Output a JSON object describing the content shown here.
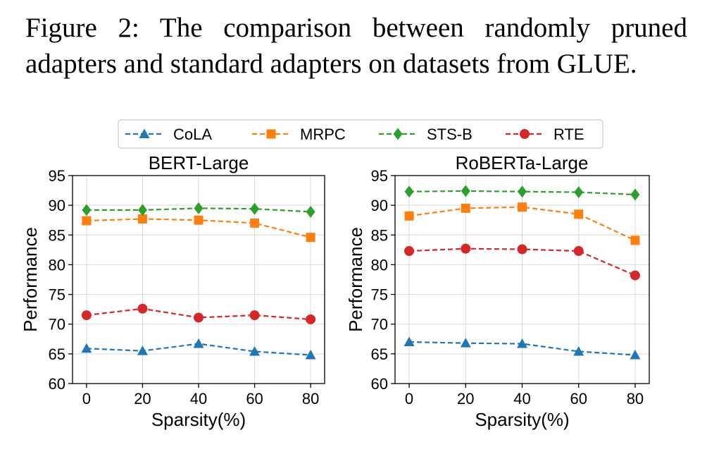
{
  "caption": "Figure 2: The comparison between randomly pruned adapters and standard adapters on datasets from GLUE.",
  "chart_data": [
    {
      "type": "line",
      "title": "BERT-Large",
      "xlabel": "Sparsity(%)",
      "ylabel": "Performance",
      "x": [
        0,
        20,
        40,
        60,
        80
      ],
      "xlim": [
        -5,
        85
      ],
      "ylim": [
        60,
        95
      ],
      "xticks": [
        "0",
        "20",
        "40",
        "60",
        "80"
      ],
      "yticks": [
        "60",
        "65",
        "70",
        "75",
        "80",
        "85",
        "90",
        "95"
      ],
      "grid": true,
      "series": [
        {
          "name": "CoLA",
          "values": [
            65.9,
            65.5,
            66.7,
            65.4,
            64.8
          ]
        },
        {
          "name": "MRPC",
          "values": [
            87.4,
            87.7,
            87.5,
            87.0,
            84.6
          ]
        },
        {
          "name": "STS-B",
          "values": [
            89.2,
            89.2,
            89.5,
            89.4,
            88.9
          ]
        },
        {
          "name": "RTE",
          "values": [
            71.5,
            72.6,
            71.1,
            71.5,
            70.8
          ]
        }
      ]
    },
    {
      "type": "line",
      "title": "RoBERTa-Large",
      "xlabel": "Sparsity(%)",
      "ylabel": "Performance",
      "x": [
        0,
        20,
        40,
        60,
        80
      ],
      "xlim": [
        -5,
        85
      ],
      "ylim": [
        60,
        95
      ],
      "xticks": [
        "0",
        "20",
        "40",
        "60",
        "80"
      ],
      "yticks": [
        "60",
        "65",
        "70",
        "75",
        "80",
        "85",
        "90",
        "95"
      ],
      "grid": true,
      "series": [
        {
          "name": "CoLA",
          "values": [
            67.0,
            66.8,
            66.7,
            65.4,
            64.8
          ]
        },
        {
          "name": "MRPC",
          "values": [
            88.2,
            89.5,
            89.7,
            88.5,
            84.1
          ]
        },
        {
          "name": "STS-B",
          "values": [
            92.3,
            92.4,
            92.3,
            92.2,
            91.8
          ]
        },
        {
          "name": "RTE",
          "values": [
            82.3,
            82.7,
            82.6,
            82.3,
            78.2
          ]
        }
      ]
    }
  ],
  "legend": {
    "placement": "top-center",
    "entries": [
      {
        "name": "CoLA",
        "color": "#1f77b4",
        "marker": "triangle"
      },
      {
        "name": "MRPC",
        "color": "#ff7f0e",
        "marker": "square"
      },
      {
        "name": "STS-B",
        "color": "#2ca02c",
        "marker": "diamond"
      },
      {
        "name": "RTE",
        "color": "#d62728",
        "marker": "circle"
      }
    ]
  }
}
